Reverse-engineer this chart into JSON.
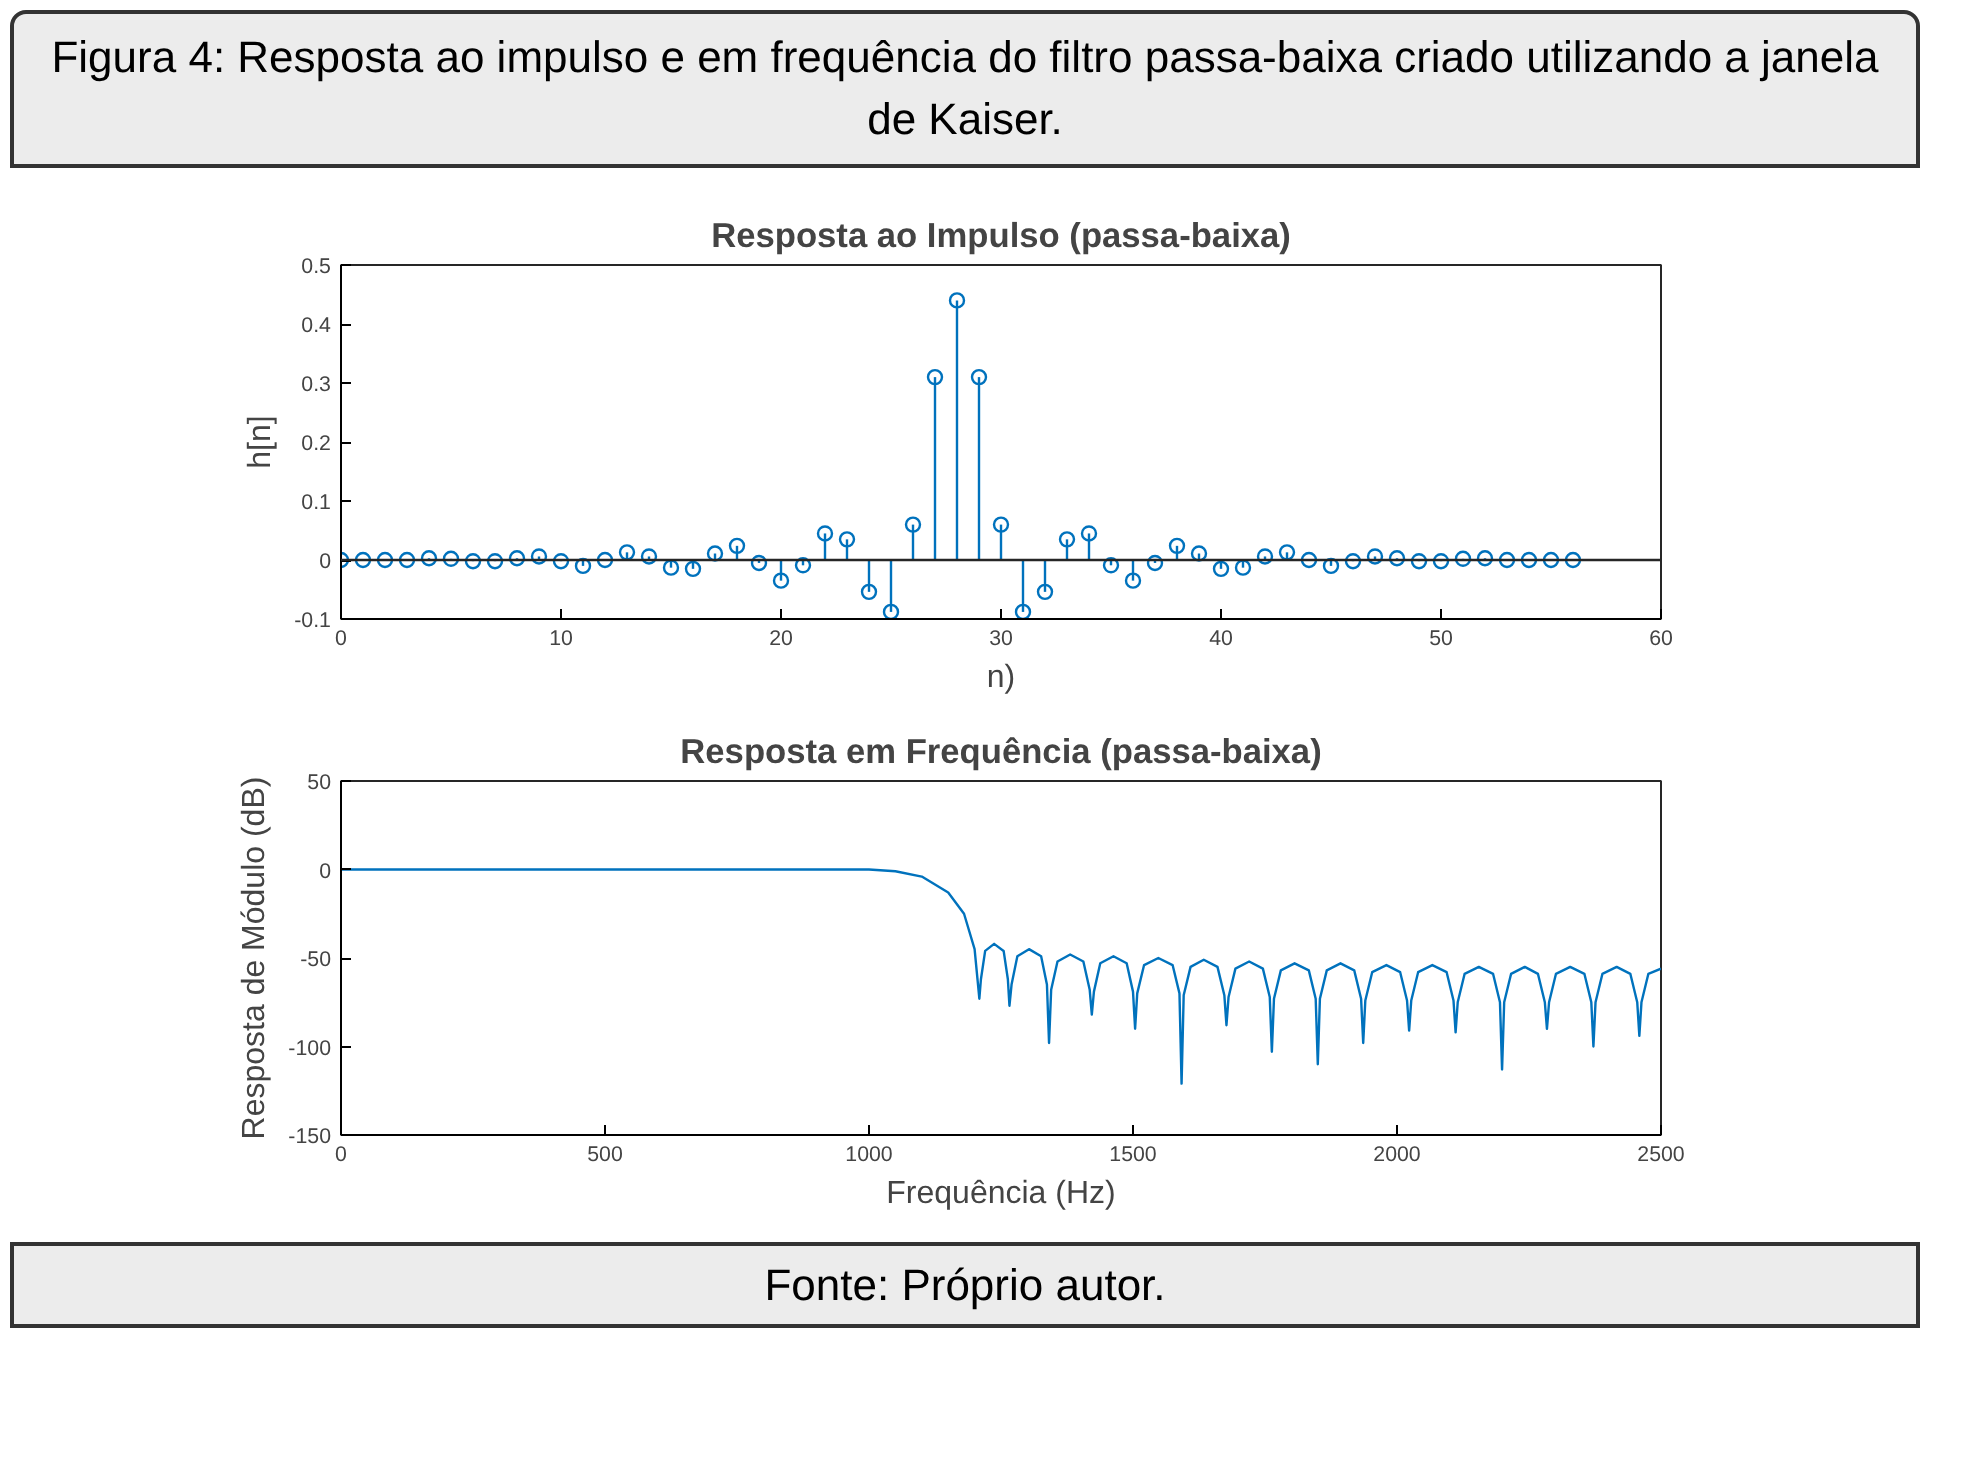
{
  "chart_data": [
    {
      "type": "lollipop",
      "title": "Resposta ao Impulso (passa-baixa)",
      "xlabel": "n)",
      "ylabel": "h[n]",
      "annotations": [
        "Figura 4: Resposta ao impulso e em frequência do filtro passa-baixa criado utilizando a janela de Kaiser."
      ],
      "x": [
        0,
        1,
        2,
        3,
        4,
        5,
        6,
        7,
        8,
        9,
        10,
        11,
        12,
        13,
        14,
        15,
        16,
        17,
        18,
        19,
        20,
        21,
        22,
        23,
        24,
        25,
        26,
        27,
        28,
        29,
        30,
        31,
        32,
        33,
        34,
        35,
        36,
        37,
        38,
        39,
        40,
        41,
        42,
        43,
        44,
        45,
        46,
        47,
        48,
        49,
        50,
        51,
        52,
        53,
        54,
        55,
        56
      ],
      "series": [
        {
          "color": "#0072bd",
          "values": [
            0,
            0,
            0,
            0,
            0.003,
            0.002,
            -0.002,
            -0.002,
            0.003,
            0.006,
            -0.002,
            -0.01,
            0,
            0.013,
            0.006,
            -0.013,
            -0.015,
            0.011,
            0.024,
            -0.005,
            -0.035,
            -0.009,
            0.045,
            0.035,
            -0.054,
            -0.088,
            0.06,
            0.31,
            0.44,
            0.31,
            0.06,
            -0.088,
            -0.054,
            0.035,
            0.045,
            -0.009,
            -0.035,
            -0.005,
            0.024,
            0.011,
            -0.015,
            -0.013,
            0.006,
            0.013,
            0,
            -0.01,
            -0.002,
            0.006,
            0.003,
            -0.002,
            -0.002,
            0.002,
            0.003,
            0,
            0,
            0,
            0
          ]
        }
      ],
      "marker": "circle",
      "xlim": [
        0,
        60
      ],
      "xticks": [
        0,
        10,
        20,
        30,
        40,
        50,
        60
      ],
      "ylim": [
        -0.1,
        0.5
      ],
      "yticks": [
        -0.1,
        0,
        0.1,
        0.2,
        0.3,
        0.4,
        0.5
      ]
    },
    {
      "type": "line",
      "title": "Resposta em Frequência (passa-baixa)",
      "xlabel": "Frequência (Hz)",
      "ylabel": "Resposta de Módulo (dB)",
      "annotations": [
        "Fonte: Próprio autor."
      ],
      "x": [
        0,
        1000,
        1050,
        1100,
        1150,
        1180,
        1200,
        1209,
        1212,
        1220,
        1237,
        1255,
        1263,
        1266,
        1270,
        1281,
        1303,
        1326,
        1337,
        1341,
        1345,
        1357,
        1381,
        1406,
        1418,
        1422,
        1426,
        1438,
        1463,
        1488,
        1500,
        1504,
        1508,
        1521,
        1548,
        1575,
        1588,
        1592,
        1596,
        1609,
        1634,
        1660,
        1673,
        1677,
        1681,
        1694,
        1720,
        1746,
        1759,
        1763,
        1767,
        1780,
        1806,
        1833,
        1846,
        1850,
        1854,
        1867,
        1893,
        1919,
        1932,
        1936,
        1940,
        1953,
        1980,
        2006,
        2019,
        2023,
        2027,
        2040,
        2067,
        2094,
        2107,
        2111,
        2115,
        2128,
        2155,
        2182,
        2195,
        2199,
        2203,
        2216,
        2242,
        2267,
        2280,
        2284,
        2288,
        2301,
        2328,
        2355,
        2368,
        2372,
        2376,
        2389,
        2416,
        2442,
        2455,
        2459,
        2463,
        2476,
        2500
      ],
      "series": [
        {
          "color": "#0072bd",
          "values": [
            0,
            0,
            -1,
            -4,
            -13,
            -25,
            -45,
            -73,
            -62,
            -46,
            -42,
            -46,
            -62,
            -77,
            -65,
            -49,
            -45,
            -49,
            -65,
            -98,
            -68,
            -52,
            -48,
            -52,
            -68,
            -82,
            -69,
            -53,
            -49,
            -53,
            -69,
            -90,
            -70,
            -54,
            -50,
            -54,
            -70,
            -121,
            -71,
            -55,
            -51,
            -55,
            -71,
            -88,
            -72,
            -56,
            -52,
            -56,
            -72,
            -103,
            -73,
            -57,
            -53,
            -57,
            -73,
            -110,
            -73,
            -57,
            -53,
            -57,
            -73,
            -98,
            -74,
            -58,
            -54,
            -58,
            -74,
            -91,
            -74,
            -58,
            -54,
            -58,
            -74,
            -92,
            -75,
            -59,
            -55,
            -59,
            -75,
            -113,
            -75,
            -59,
            -55,
            -59,
            -75,
            -90,
            -75,
            -59,
            -55,
            -59,
            -75,
            -100,
            -75,
            -59,
            -55,
            -59,
            -75,
            -94,
            -75,
            -59,
            -56
          ]
        }
      ],
      "xlim": [
        0,
        2500
      ],
      "xticks": [
        0,
        500,
        1000,
        1500,
        2000,
        2500
      ],
      "ylim": [
        -150,
        50
      ],
      "yticks": [
        -150,
        -100,
        -50,
        0,
        50
      ]
    }
  ]
}
